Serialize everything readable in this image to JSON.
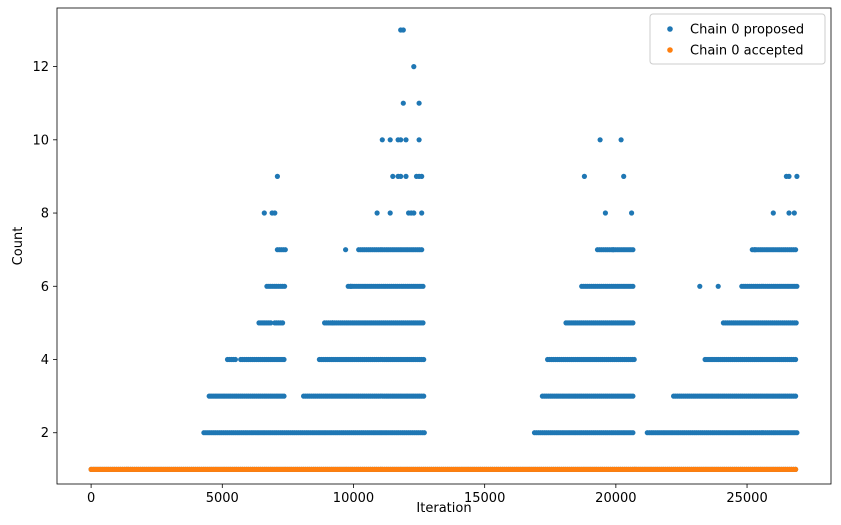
{
  "chart_data": {
    "type": "scatter",
    "title": "",
    "xlabel": "Iteration",
    "ylabel": "Count",
    "xlim": [
      -1300,
      28200
    ],
    "ylim": [
      0.6,
      13.6
    ],
    "xticks": [
      0,
      5000,
      10000,
      15000,
      20000,
      25000
    ],
    "yticks": [
      2,
      4,
      6,
      8,
      10,
      12
    ],
    "grid": false,
    "legend_position": "top-right",
    "colors": {
      "proposed": "#1f77b4",
      "accepted": "#ff7f0e"
    },
    "series": [
      {
        "name": "Chain 0 proposed",
        "key": "proposed",
        "bands": [
          {
            "y": 1,
            "ranges": [
              [
                0,
                26900
              ]
            ]
          },
          {
            "y": 2,
            "ranges": [
              [
                4300,
                12700
              ],
              [
                16900,
                20700
              ],
              [
                21200,
                26900
              ]
            ]
          },
          {
            "y": 3,
            "ranges": [
              [
                4500,
                7400
              ],
              [
                8100,
                12700
              ],
              [
                17200,
                20700
              ],
              [
                22200,
                26900
              ]
            ]
          },
          {
            "y": 4,
            "ranges": [
              [
                5200,
                5500
              ],
              [
                5700,
                7400
              ],
              [
                8700,
                12700
              ],
              [
                17400,
                20700
              ],
              [
                23400,
                26900
              ]
            ]
          },
          {
            "y": 5,
            "ranges": [
              [
                6400,
                6900
              ],
              [
                7000,
                7300
              ],
              [
                8900,
                12700
              ],
              [
                18100,
                20700
              ],
              [
                24100,
                26900
              ]
            ]
          },
          {
            "y": 6,
            "ranges": [
              [
                6700,
                7400
              ],
              [
                9800,
                12700
              ],
              [
                18700,
                20700
              ],
              [
                24800,
                26900
              ]
            ]
          },
          {
            "y": 7,
            "ranges": [
              [
                7100,
                7400
              ],
              [
                10200,
                12600
              ],
              [
                19300,
                20700
              ],
              [
                25200,
                26900
              ]
            ]
          }
        ],
        "points": [
          [
            9700,
            7
          ],
          [
            9200,
            5
          ],
          [
            9900,
            6
          ],
          [
            23200,
            6
          ],
          [
            23900,
            6
          ],
          [
            25300,
            7
          ],
          [
            19900,
            7
          ],
          [
            6600,
            8
          ],
          [
            6900,
            8
          ],
          [
            7000,
            8
          ],
          [
            10900,
            8
          ],
          [
            11400,
            8
          ],
          [
            12100,
            8
          ],
          [
            12200,
            8
          ],
          [
            12300,
            8
          ],
          [
            12600,
            8
          ],
          [
            19600,
            8
          ],
          [
            20600,
            8
          ],
          [
            26000,
            8
          ],
          [
            26600,
            8
          ],
          [
            26800,
            8
          ],
          [
            7100,
            9
          ],
          [
            11500,
            9
          ],
          [
            11700,
            9
          ],
          [
            11800,
            9
          ],
          [
            12000,
            9
          ],
          [
            12400,
            9
          ],
          [
            12500,
            9
          ],
          [
            12600,
            9
          ],
          [
            18800,
            9
          ],
          [
            20300,
            9
          ],
          [
            26500,
            9
          ],
          [
            26600,
            9
          ],
          [
            26900,
            9
          ],
          [
            11100,
            10
          ],
          [
            11400,
            10
          ],
          [
            11700,
            10
          ],
          [
            11800,
            10
          ],
          [
            12000,
            10
          ],
          [
            12500,
            10
          ],
          [
            19400,
            10
          ],
          [
            20200,
            10
          ],
          [
            11900,
            11
          ],
          [
            12500,
            11
          ],
          [
            12300,
            12
          ],
          [
            11800,
            13
          ],
          [
            11900,
            13
          ]
        ]
      },
      {
        "name": "Chain 0 accepted",
        "key": "accepted",
        "bands": [
          {
            "y": 1,
            "ranges": [
              [
                0,
                26900
              ]
            ]
          }
        ],
        "points": []
      }
    ]
  }
}
